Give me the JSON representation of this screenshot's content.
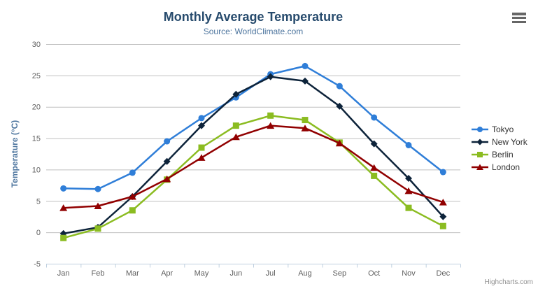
{
  "header": {
    "title": "Monthly Average Temperature",
    "subtitle": "Source: WorldClimate.com"
  },
  "credits": {
    "label": "Highcharts.com"
  },
  "chart_data": {
    "type": "line",
    "title": "Monthly Average Temperature",
    "subtitle": "Source: WorldClimate.com",
    "categories": [
      "Jan",
      "Feb",
      "Mar",
      "Apr",
      "May",
      "Jun",
      "Jul",
      "Aug",
      "Sep",
      "Oct",
      "Nov",
      "Dec"
    ],
    "series": [
      {
        "name": "Tokyo",
        "color": "#2f7ed8",
        "marker": "circle",
        "values": [
          7.0,
          6.9,
          9.5,
          14.5,
          18.2,
          21.5,
          25.2,
          26.5,
          23.3,
          18.3,
          13.9,
          9.6
        ]
      },
      {
        "name": "New York",
        "color": "#0d233a",
        "marker": "diamond",
        "values": [
          -0.2,
          0.8,
          5.7,
          11.3,
          17.0,
          22.0,
          24.8,
          24.1,
          20.1,
          14.1,
          8.6,
          2.5
        ]
      },
      {
        "name": "Berlin",
        "color": "#8bbc21",
        "marker": "square",
        "values": [
          -0.9,
          0.6,
          3.5,
          8.4,
          13.5,
          17.0,
          18.6,
          17.9,
          14.3,
          9.0,
          3.9,
          1.0
        ]
      },
      {
        "name": "London",
        "color": "#910000",
        "marker": "triangle",
        "values": [
          3.9,
          4.2,
          5.7,
          8.5,
          11.9,
          15.2,
          17.0,
          16.6,
          14.2,
          10.3,
          6.6,
          4.8
        ]
      }
    ],
    "xlabel": "",
    "ylabel": "Temperature (°C)",
    "ylim": [
      -5,
      30
    ],
    "ytick_interval": 5,
    "yticks": [
      -5,
      0,
      5,
      10,
      15,
      20,
      25,
      30
    ],
    "grid": true,
    "legend_position": "right"
  },
  "colors": {
    "title": "#274b6d",
    "subtitle": "#4d759e",
    "axis_title": "#4d759e",
    "axis_label": "#606060",
    "legend_text": "#333333",
    "grid_line": "#c0c0c0",
    "axis_line": "#c0d0e0",
    "credits": "#909090",
    "menu_icon": "#666666",
    "background": "#ffffff"
  }
}
